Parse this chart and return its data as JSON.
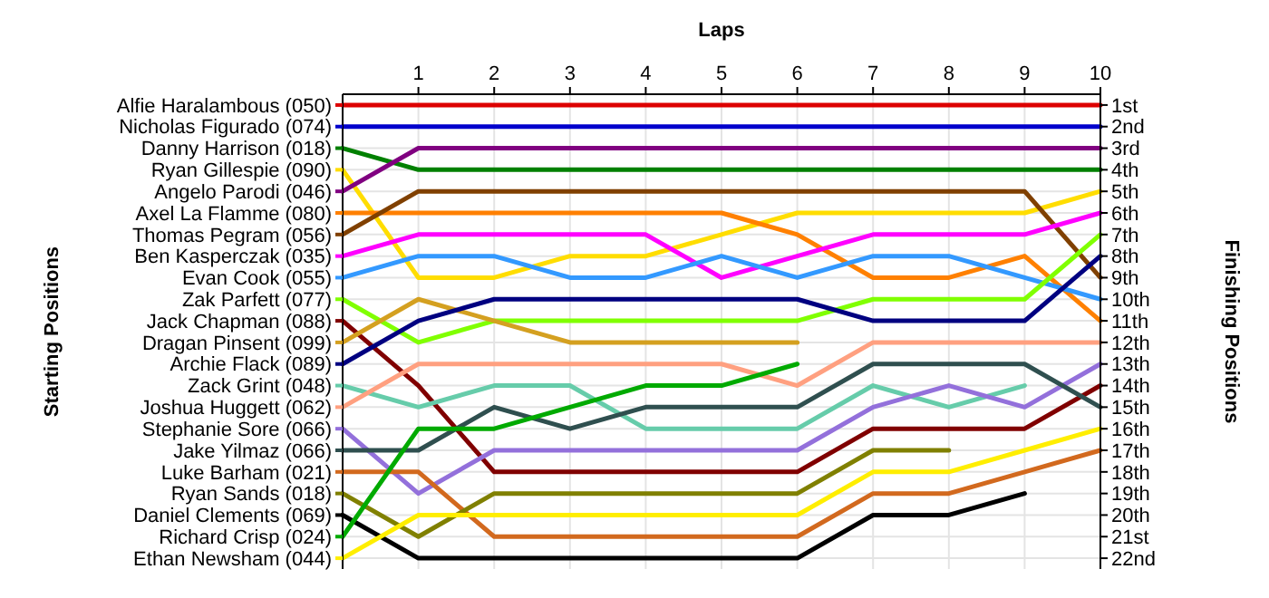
{
  "chart_data": {
    "type": "line",
    "xlabel": "Laps",
    "ylabel": "Finishing Positions",
    "legend_title": "Starting Positions",
    "x": [
      0,
      1,
      2,
      3,
      4,
      5,
      6,
      7,
      8,
      9,
      10
    ],
    "xlim": [
      0,
      10
    ],
    "xticks": [
      1,
      2,
      3,
      4,
      5,
      6,
      7,
      8,
      9,
      10
    ],
    "ylim": [
      22.5,
      0.5
    ],
    "yticks": [
      {
        "value": 1,
        "label": "1st"
      },
      {
        "value": 2,
        "label": "2nd"
      },
      {
        "value": 3,
        "label": "3rd"
      },
      {
        "value": 4,
        "label": "4th"
      },
      {
        "value": 5,
        "label": "5th"
      },
      {
        "value": 6,
        "label": "6th"
      },
      {
        "value": 7,
        "label": "7th"
      },
      {
        "value": 8,
        "label": "8th"
      },
      {
        "value": 9,
        "label": "9th"
      },
      {
        "value": 10,
        "label": "10th"
      },
      {
        "value": 11,
        "label": "11th"
      },
      {
        "value": 12,
        "label": "12th"
      },
      {
        "value": 13,
        "label": "13th"
      },
      {
        "value": 14,
        "label": "14th"
      },
      {
        "value": 15,
        "label": "15th"
      },
      {
        "value": 16,
        "label": "16th"
      },
      {
        "value": 17,
        "label": "17th"
      },
      {
        "value": 18,
        "label": "18th"
      },
      {
        "value": 19,
        "label": "19th"
      },
      {
        "value": 20,
        "label": "20th"
      },
      {
        "value": 21,
        "label": "21st"
      },
      {
        "value": 22,
        "label": "22nd"
      }
    ],
    "grid": true,
    "legend": "left",
    "marker": "none",
    "line_style": "solid",
    "series": [
      {
        "name": "Alfie Haralambous (050)",
        "color": "#dd0000",
        "values": [
          1,
          1,
          1,
          1,
          1,
          1,
          1,
          1,
          1,
          1,
          1
        ]
      },
      {
        "name": "Nicholas Figurado (074)",
        "color": "#0000cc",
        "values": [
          2,
          2,
          2,
          2,
          2,
          2,
          2,
          2,
          2,
          2,
          2
        ]
      },
      {
        "name": "Danny Harrison (018)",
        "color": "#008000",
        "values": [
          3,
          4,
          4,
          4,
          4,
          4,
          4,
          4,
          4,
          4,
          4
        ]
      },
      {
        "name": "Ryan Gillespie (090)",
        "color": "#ffdd00",
        "values": [
          4,
          9,
          9,
          8,
          8,
          7,
          6,
          6,
          6,
          6,
          5
        ]
      },
      {
        "name": "Angelo Parodi (046)",
        "color": "#800080",
        "values": [
          5,
          3,
          3,
          3,
          3,
          3,
          3,
          3,
          3,
          3,
          3
        ]
      },
      {
        "name": "Axel La Flamme (080)",
        "color": "#ff8000",
        "values": [
          6,
          6,
          6,
          6,
          6,
          6,
          7,
          9,
          9,
          8,
          11
        ]
      },
      {
        "name": "Thomas Pegram (056)",
        "color": "#804000",
        "values": [
          7,
          5,
          5,
          5,
          5,
          5,
          5,
          5,
          5,
          5,
          9
        ]
      },
      {
        "name": "Ben Kasperczak (035)",
        "color": "#ff00ff",
        "values": [
          8,
          7,
          7,
          7,
          7,
          9,
          8,
          7,
          7,
          7,
          6
        ]
      },
      {
        "name": "Evan Cook (055)",
        "color": "#3399ff",
        "values": [
          9,
          8,
          8,
          9,
          9,
          8,
          9,
          8,
          8,
          9,
          10
        ]
      },
      {
        "name": "Zak Parfett (077)",
        "color": "#80ff00",
        "values": [
          10,
          12,
          11,
          11,
          11,
          11,
          11,
          10,
          10,
          10,
          7
        ]
      },
      {
        "name": "Jack Chapman (088)",
        "color": "#800000",
        "values": [
          11,
          14,
          18,
          18,
          18,
          18,
          18,
          16,
          16,
          16,
          14
        ]
      },
      {
        "name": "Dragan Pinsent (099)",
        "color": "#d4a020",
        "values": [
          12,
          10,
          11,
          12,
          12,
          12,
          12,
          null,
          null,
          null,
          null
        ]
      },
      {
        "name": "Archie Flack (089)",
        "color": "#000080",
        "values": [
          13,
          11,
          10,
          10,
          10,
          10,
          10,
          11,
          11,
          11,
          8
        ]
      },
      {
        "name": "Zack Grint (048)",
        "color": "#66ccaa",
        "values": [
          14,
          15,
          14,
          14,
          16,
          16,
          16,
          14,
          15,
          14,
          null
        ]
      },
      {
        "name": "Joshua Huggett (062)",
        "color": "#ffa080",
        "values": [
          15,
          13,
          13,
          13,
          13,
          13,
          14,
          12,
          12,
          12,
          12
        ]
      },
      {
        "name": "Stephanie Sore (066)",
        "color": "#9370db",
        "values": [
          16,
          19,
          17,
          17,
          17,
          17,
          17,
          15,
          14,
          15,
          13
        ]
      },
      {
        "name": "Jake Yilmaz (066)",
        "color": "#2f4f4f",
        "values": [
          17,
          17,
          15,
          16,
          15,
          15,
          15,
          13,
          13,
          13,
          15
        ]
      },
      {
        "name": "Luke Barham (021)",
        "color": "#d2691e",
        "values": [
          18,
          18,
          21,
          21,
          21,
          21,
          21,
          19,
          19,
          18,
          17
        ]
      },
      {
        "name": "Ryan Sands (018)",
        "color": "#808000",
        "values": [
          19,
          21,
          19,
          19,
          19,
          19,
          19,
          17,
          17,
          null,
          null
        ]
      },
      {
        "name": "Daniel Clements (069)",
        "color": "#000000",
        "values": [
          20,
          22,
          22,
          22,
          22,
          22,
          22,
          20,
          20,
          19,
          null
        ]
      },
      {
        "name": "Richard Crisp (024)",
        "color": "#00aa00",
        "values": [
          21,
          16,
          16,
          15,
          14,
          14,
          13,
          null,
          null,
          null,
          null
        ]
      },
      {
        "name": "Ethan Newsham (044)",
        "color": "#ffee00",
        "values": [
          22,
          20,
          20,
          20,
          20,
          20,
          20,
          18,
          18,
          17,
          16
        ]
      }
    ]
  }
}
